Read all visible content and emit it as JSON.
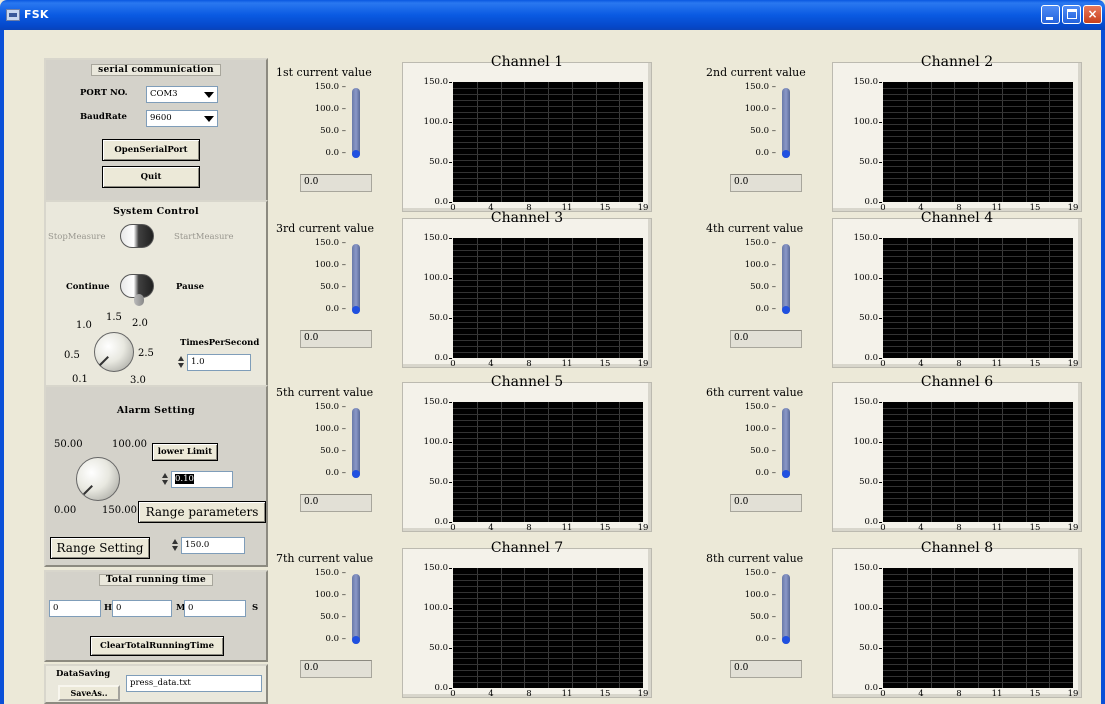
{
  "window": {
    "title": "FSK",
    "controls": {
      "minimize": "minimize-icon",
      "maximize": "maximize-icon",
      "close": "×"
    }
  },
  "serial": {
    "title": "serial communication",
    "port_label": "PORT NO.",
    "port_value": "COM3",
    "baud_label": "BaudRate",
    "baud_value": "9600",
    "open_button": "OpenSerialPort",
    "quit_button": "Quit"
  },
  "system": {
    "title": "System Control",
    "stop_label": "StopMeasure",
    "start_label": "StartMeasure",
    "continue_label": "Continue",
    "pause_label": "Pause",
    "knob_ticks": [
      "1.0",
      "1.5",
      "2.0",
      "0.5",
      "2.5",
      "0.1",
      "3.0"
    ],
    "times_label": "TimesPerSecond",
    "times_value": "1.0"
  },
  "alarm": {
    "title": "Alarm Setting",
    "knob_ticks": [
      "50.00",
      "100.00",
      "0.00",
      "150.00"
    ],
    "lower_limit_button": "lower Limit",
    "lower_limit_value": "0.10",
    "range_params_button": "Range parameters",
    "range_setting_button": "Range Setting",
    "range_value": "150.0"
  },
  "running": {
    "title": "Total running time",
    "hours": "0",
    "h_unit": "H",
    "minutes": "0",
    "m_unit": "M",
    "seconds": "0",
    "s_unit": "S",
    "clear_button": "ClearTotalRunningTime"
  },
  "saving": {
    "label": "DataSaving",
    "saveas_button": "SaveAs..",
    "filename": "press_data.txt"
  },
  "tank_ticks": [
    "150.0",
    "100.0",
    "50.0",
    "0.0"
  ],
  "plot_yticks": [
    "150.0",
    "100.0",
    "50.0",
    "0.0"
  ],
  "plot_xticks": [
    "0",
    "4",
    "8",
    "11",
    "15",
    "19"
  ],
  "channels": [
    {
      "label": "1st current value",
      "title": "Channel 1",
      "value": "0.0"
    },
    {
      "label": "2nd current value",
      "title": "Channel 2",
      "value": "0.0"
    },
    {
      "label": "3rd current value",
      "title": "Channel 3",
      "value": "0.0"
    },
    {
      "label": "4th current value",
      "title": "Channel 4",
      "value": "0.0"
    },
    {
      "label": "5th current value",
      "title": "Channel 5",
      "value": "0.0"
    },
    {
      "label": "6th current value",
      "title": "Channel 6",
      "value": "0.0"
    },
    {
      "label": "7th current value",
      "title": "Channel 7",
      "value": "0.0"
    },
    {
      "label": "8th current value",
      "title": "Channel 8",
      "value": "0.0"
    }
  ]
}
